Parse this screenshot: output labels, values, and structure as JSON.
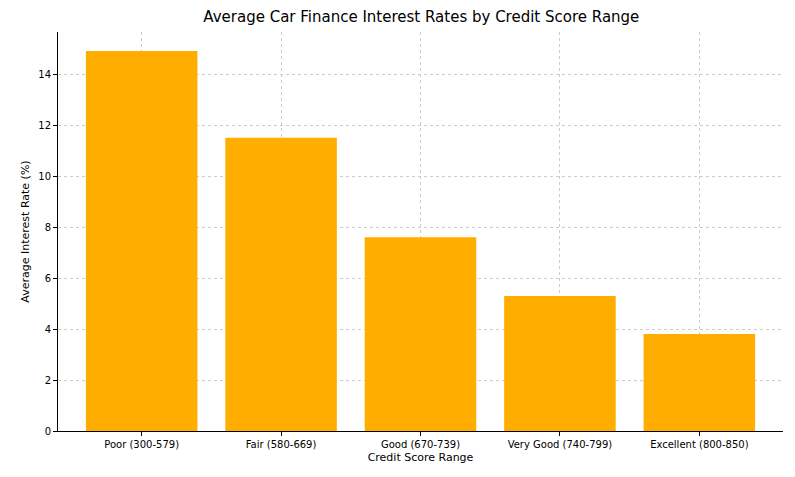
{
  "chart_data": {
    "type": "bar",
    "title": "Average Car Finance Interest Rates by Credit Score Range",
    "x_label": "Credit Score Range",
    "y_label": "Average Interest Rate (%)",
    "categories": [
      "Poor (300-579)",
      "Fair (580-669)",
      "Good (670-739)",
      "Very Good (740-799)",
      "Excellent (800-850)"
    ],
    "values": [
      14.9,
      11.5,
      7.6,
      5.3,
      3.8
    ],
    "color": "#ffae00",
    "ylim": [
      0,
      15.65
    ],
    "yticks": [
      0,
      2,
      4,
      6,
      8,
      10,
      12,
      14
    ],
    "grid": true
  }
}
